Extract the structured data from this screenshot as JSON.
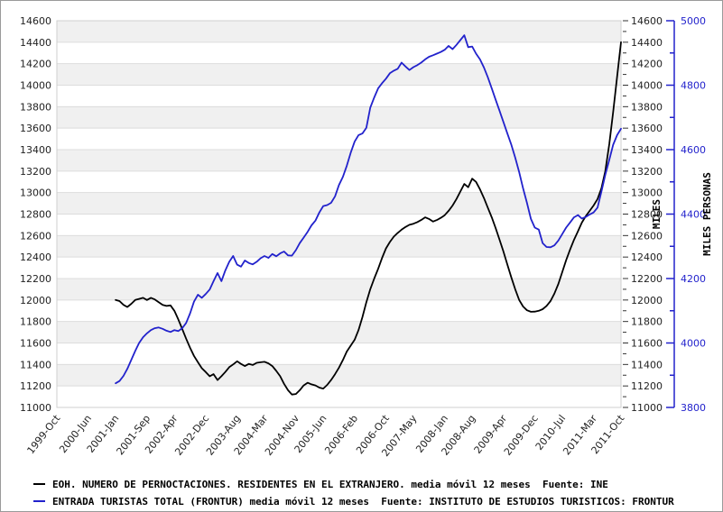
{
  "chart_data": {
    "type": "line",
    "title": "",
    "x_axis": {
      "start_label": "1999-Oct",
      "end_label": "2011-Oct",
      "total_months": 144,
      "tick_labels": [
        {
          "label": "1999-Oct",
          "m": 0
        },
        {
          "label": "2000-Jun",
          "m": 8
        },
        {
          "label": "2001-Jan",
          "m": 15
        },
        {
          "label": "2001-Sep",
          "m": 23
        },
        {
          "label": "2002-Apr",
          "m": 30
        },
        {
          "label": "2002-Dec",
          "m": 38
        },
        {
          "label": "2003-Aug",
          "m": 46
        },
        {
          "label": "2004-Mar",
          "m": 53
        },
        {
          "label": "2004-Nov",
          "m": 61
        },
        {
          "label": "2005-Jun",
          "m": 68
        },
        {
          "label": "2006-Feb",
          "m": 76
        },
        {
          "label": "2006-Oct",
          "m": 84
        },
        {
          "label": "2007-May",
          "m": 91
        },
        {
          "label": "2008-Jan",
          "m": 99
        },
        {
          "label": "2008-Aug",
          "m": 106
        },
        {
          "label": "2009-Apr",
          "m": 114
        },
        {
          "label": "2009-Dec",
          "m": 122
        },
        {
          "label": "2010-Jul",
          "m": 129
        },
        {
          "label": "2011-Mar",
          "m": 137
        },
        {
          "label": "2011-Oct",
          "m": 144
        }
      ]
    },
    "left_axis": {
      "min": 11000,
      "max": 14600,
      "step": 200,
      "title": "MILES",
      "color": "#222222"
    },
    "right_axis_inner": {
      "min": 11000,
      "max": 14600,
      "step": 200,
      "minor_step": 100,
      "color": "#222222"
    },
    "right_axis_outer": {
      "min": 3800,
      "max": 5000,
      "step": 200,
      "minor_step": 100,
      "title": "MILES PERSONAS",
      "color": "#2222cc"
    },
    "grid": "horizontal-bands",
    "band_color": "#f0f0f0",
    "gridline_color": "#dcdcdc",
    "legend_position": "bottom-left",
    "series": [
      {
        "name": "EOH. NUMERO DE PERNOCTACIONES. RESIDENTES EN EL EXTRANJERO. media móvil 12 meses  Fuente: INE",
        "axis": "left",
        "color": "#000000",
        "points": [
          [
            15,
            12000
          ],
          [
            16,
            11990
          ],
          [
            17,
            11955
          ],
          [
            18,
            11935
          ],
          [
            19,
            11965
          ],
          [
            20,
            12000
          ],
          [
            21,
            12010
          ],
          [
            22,
            12020
          ],
          [
            23,
            12000
          ],
          [
            24,
            12020
          ],
          [
            25,
            12005
          ],
          [
            26,
            11980
          ],
          [
            27,
            11955
          ],
          [
            28,
            11945
          ],
          [
            29,
            11950
          ],
          [
            30,
            11900
          ],
          [
            31,
            11820
          ],
          [
            32,
            11730
          ],
          [
            33,
            11640
          ],
          [
            34,
            11555
          ],
          [
            35,
            11480
          ],
          [
            36,
            11420
          ],
          [
            37,
            11365
          ],
          [
            38,
            11330
          ],
          [
            39,
            11290
          ],
          [
            40,
            11310
          ],
          [
            41,
            11255
          ],
          [
            42,
            11290
          ],
          [
            43,
            11330
          ],
          [
            44,
            11375
          ],
          [
            45,
            11400
          ],
          [
            46,
            11430
          ],
          [
            47,
            11405
          ],
          [
            48,
            11385
          ],
          [
            49,
            11405
          ],
          [
            50,
            11395
          ],
          [
            51,
            11415
          ],
          [
            52,
            11420
          ],
          [
            53,
            11425
          ],
          [
            54,
            11410
          ],
          [
            55,
            11385
          ],
          [
            56,
            11340
          ],
          [
            57,
            11290
          ],
          [
            58,
            11220
          ],
          [
            59,
            11160
          ],
          [
            60,
            11120
          ],
          [
            61,
            11125
          ],
          [
            62,
            11160
          ],
          [
            63,
            11205
          ],
          [
            64,
            11230
          ],
          [
            65,
            11215
          ],
          [
            66,
            11205
          ],
          [
            67,
            11185
          ],
          [
            68,
            11175
          ],
          [
            69,
            11210
          ],
          [
            70,
            11255
          ],
          [
            71,
            11310
          ],
          [
            72,
            11370
          ],
          [
            73,
            11440
          ],
          [
            74,
            11520
          ],
          [
            75,
            11575
          ],
          [
            76,
            11630
          ],
          [
            77,
            11720
          ],
          [
            78,
            11840
          ],
          [
            79,
            11980
          ],
          [
            80,
            12100
          ],
          [
            81,
            12200
          ],
          [
            82,
            12290
          ],
          [
            83,
            12390
          ],
          [
            84,
            12480
          ],
          [
            85,
            12540
          ],
          [
            86,
            12590
          ],
          [
            87,
            12625
          ],
          [
            88,
            12655
          ],
          [
            89,
            12680
          ],
          [
            90,
            12700
          ],
          [
            91,
            12710
          ],
          [
            92,
            12725
          ],
          [
            93,
            12745
          ],
          [
            94,
            12770
          ],
          [
            95,
            12755
          ],
          [
            96,
            12730
          ],
          [
            97,
            12745
          ],
          [
            98,
            12765
          ],
          [
            99,
            12790
          ],
          [
            100,
            12830
          ],
          [
            101,
            12880
          ],
          [
            102,
            12940
          ],
          [
            103,
            13010
          ],
          [
            104,
            13080
          ],
          [
            105,
            13050
          ],
          [
            106,
            13130
          ],
          [
            107,
            13100
          ],
          [
            108,
            13030
          ],
          [
            109,
            12950
          ],
          [
            110,
            12860
          ],
          [
            111,
            12770
          ],
          [
            112,
            12670
          ],
          [
            113,
            12560
          ],
          [
            114,
            12450
          ],
          [
            115,
            12330
          ],
          [
            116,
            12210
          ],
          [
            117,
            12100
          ],
          [
            118,
            12000
          ],
          [
            119,
            11940
          ],
          [
            120,
            11905
          ],
          [
            121,
            11890
          ],
          [
            122,
            11892
          ],
          [
            123,
            11900
          ],
          [
            124,
            11915
          ],
          [
            125,
            11945
          ],
          [
            126,
            11990
          ],
          [
            127,
            12060
          ],
          [
            128,
            12150
          ],
          [
            129,
            12260
          ],
          [
            130,
            12370
          ],
          [
            131,
            12470
          ],
          [
            132,
            12560
          ],
          [
            133,
            12640
          ],
          [
            134,
            12720
          ],
          [
            135,
            12780
          ],
          [
            136,
            12830
          ],
          [
            137,
            12880
          ],
          [
            138,
            12940
          ],
          [
            139,
            13040
          ],
          [
            140,
            13200
          ],
          [
            141,
            13450
          ],
          [
            142,
            13750
          ],
          [
            143,
            14080
          ],
          [
            144,
            14400
          ]
        ]
      },
      {
        "name": "ENTRADA TURISTAS TOTAL (FRONTUR) media móvil 12 meses  Fuente: INSTITUTO DE ESTUDIOS TURISTICOS: FRONTUR",
        "axis": "right_outer",
        "color": "#2222cc",
        "points": [
          [
            15,
            3875
          ],
          [
            16,
            3882
          ],
          [
            17,
            3898
          ],
          [
            18,
            3920
          ],
          [
            19,
            3948
          ],
          [
            20,
            3975
          ],
          [
            21,
            4000
          ],
          [
            22,
            4018
          ],
          [
            23,
            4030
          ],
          [
            24,
            4040
          ],
          [
            25,
            4046
          ],
          [
            26,
            4048
          ],
          [
            27,
            4044
          ],
          [
            28,
            4038
          ],
          [
            29,
            4034
          ],
          [
            30,
            4040
          ],
          [
            31,
            4037
          ],
          [
            32,
            4046
          ],
          [
            33,
            4062
          ],
          [
            34,
            4092
          ],
          [
            35,
            4128
          ],
          [
            36,
            4150
          ],
          [
            37,
            4140
          ],
          [
            38,
            4152
          ],
          [
            39,
            4166
          ],
          [
            40,
            4192
          ],
          [
            41,
            4217
          ],
          [
            42,
            4192
          ],
          [
            43,
            4225
          ],
          [
            44,
            4252
          ],
          [
            45,
            4270
          ],
          [
            46,
            4243
          ],
          [
            47,
            4237
          ],
          [
            48,
            4256
          ],
          [
            49,
            4248
          ],
          [
            50,
            4244
          ],
          [
            51,
            4252
          ],
          [
            52,
            4263
          ],
          [
            53,
            4270
          ],
          [
            54,
            4264
          ],
          [
            55,
            4276
          ],
          [
            56,
            4269
          ],
          [
            57,
            4278
          ],
          [
            58,
            4284
          ],
          [
            59,
            4272
          ],
          [
            60,
            4271
          ],
          [
            61,
            4288
          ],
          [
            62,
            4310
          ],
          [
            63,
            4327
          ],
          [
            64,
            4345
          ],
          [
            65,
            4365
          ],
          [
            66,
            4380
          ],
          [
            67,
            4405
          ],
          [
            68,
            4425
          ],
          [
            69,
            4428
          ],
          [
            70,
            4435
          ],
          [
            71,
            4455
          ],
          [
            72,
            4490
          ],
          [
            73,
            4515
          ],
          [
            74,
            4550
          ],
          [
            75,
            4590
          ],
          [
            76,
            4625
          ],
          [
            77,
            4645
          ],
          [
            78,
            4650
          ],
          [
            79,
            4668
          ],
          [
            80,
            4730
          ],
          [
            81,
            4762
          ],
          [
            82,
            4790
          ],
          [
            83,
            4806
          ],
          [
            84,
            4820
          ],
          [
            85,
            4837
          ],
          [
            86,
            4845
          ],
          [
            87,
            4851
          ],
          [
            88,
            4870
          ],
          [
            89,
            4858
          ],
          [
            90,
            4847
          ],
          [
            91,
            4856
          ],
          [
            92,
            4862
          ],
          [
            93,
            4870
          ],
          [
            94,
            4880
          ],
          [
            95,
            4888
          ],
          [
            96,
            4893
          ],
          [
            97,
            4898
          ],
          [
            98,
            4903
          ],
          [
            99,
            4910
          ],
          [
            100,
            4922
          ],
          [
            101,
            4912
          ],
          [
            102,
            4925
          ],
          [
            103,
            4940
          ],
          [
            104,
            4955
          ],
          [
            105,
            4918
          ],
          [
            106,
            4920
          ],
          [
            107,
            4898
          ],
          [
            108,
            4880
          ],
          [
            109,
            4855
          ],
          [
            110,
            4825
          ],
          [
            111,
            4790
          ],
          [
            112,
            4755
          ],
          [
            113,
            4720
          ],
          [
            114,
            4685
          ],
          [
            115,
            4650
          ],
          [
            116,
            4615
          ],
          [
            117,
            4575
          ],
          [
            118,
            4530
          ],
          [
            119,
            4480
          ],
          [
            120,
            4435
          ],
          [
            121,
            4385
          ],
          [
            122,
            4358
          ],
          [
            123,
            4352
          ],
          [
            124,
            4310
          ],
          [
            125,
            4298
          ],
          [
            126,
            4297
          ],
          [
            127,
            4303
          ],
          [
            128,
            4318
          ],
          [
            129,
            4338
          ],
          [
            130,
            4358
          ],
          [
            131,
            4374
          ],
          [
            132,
            4390
          ],
          [
            133,
            4397
          ],
          [
            134,
            4386
          ],
          [
            135,
            4391
          ],
          [
            136,
            4399
          ],
          [
            137,
            4405
          ],
          [
            138,
            4420
          ],
          [
            139,
            4470
          ],
          [
            140,
            4522
          ],
          [
            141,
            4568
          ],
          [
            142,
            4615
          ],
          [
            143,
            4645
          ],
          [
            144,
            4665
          ]
        ]
      }
    ]
  },
  "legend": {
    "items": [
      {
        "label": "EOH. NUMERO DE PERNOCTACIONES. RESIDENTES EN EL EXTRANJERO. media móvil 12 meses  Fuente: INE",
        "color": "#000000"
      },
      {
        "label": "ENTRADA TURISTAS TOTAL (FRONTUR) media móvil 12 meses  Fuente: INSTITUTO DE ESTUDIOS TURISTICOS: FRONTUR",
        "color": "#2222cc"
      }
    ]
  }
}
